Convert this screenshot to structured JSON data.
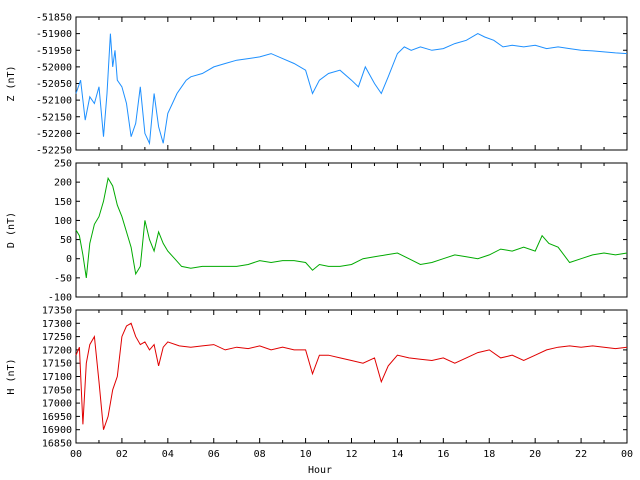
{
  "chart_data": [
    {
      "type": "line",
      "ylabel": "Z (nT)",
      "ylim": [
        -52250,
        -51850
      ],
      "yticks": [
        -51850,
        -51900,
        -51950,
        -52000,
        -52050,
        -52100,
        -52150,
        -52200,
        -52250
      ],
      "series": [
        {
          "color": "#1e90ff",
          "x": [
            0.0,
            0.2,
            0.4,
            0.6,
            0.8,
            1.0,
            1.2,
            1.35,
            1.5,
            1.6,
            1.7,
            1.8,
            2.0,
            2.2,
            2.4,
            2.6,
            2.8,
            3.0,
            3.2,
            3.4,
            3.6,
            3.8,
            4.0,
            4.2,
            4.4,
            4.6,
            4.8,
            5.0,
            5.5,
            6.0,
            6.5,
            7.0,
            7.5,
            8.0,
            8.5,
            9.0,
            9.5,
            10.0,
            10.3,
            10.6,
            11.0,
            11.5,
            12.0,
            12.3,
            12.6,
            13.0,
            13.3,
            13.6,
            14.0,
            14.3,
            14.6,
            15.0,
            15.5,
            16.0,
            16.5,
            17.0,
            17.5,
            17.8,
            18.2,
            18.6,
            19.0,
            19.5,
            20.0,
            20.5,
            21.0,
            21.5,
            22.0,
            22.5,
            23.0,
            23.5,
            24.0
          ],
          "y": [
            -52080,
            -52040,
            -52160,
            -52090,
            -52110,
            -52060,
            -52210,
            -52080,
            -51900,
            -52000,
            -51950,
            -52040,
            -52060,
            -52110,
            -52210,
            -52170,
            -52060,
            -52200,
            -52230,
            -52080,
            -52180,
            -52230,
            -52140,
            -52110,
            -52080,
            -52060,
            -52040,
            -52030,
            -52020,
            -52000,
            -51990,
            -51980,
            -51975,
            -51970,
            -51960,
            -51975,
            -51990,
            -52010,
            -52080,
            -52040,
            -52020,
            -52010,
            -52040,
            -52060,
            -52000,
            -52050,
            -52080,
            -52030,
            -51960,
            -51940,
            -51950,
            -51940,
            -51950,
            -51945,
            -51930,
            -51920,
            -51900,
            -51910,
            -51920,
            -51940,
            -51935,
            -51940,
            -51935,
            -51945,
            -51940,
            -51945,
            -51950,
            -51952,
            -51955,
            -51958,
            -51960
          ]
        }
      ]
    },
    {
      "type": "line",
      "ylabel": "D (nT)",
      "ylim": [
        -100,
        250
      ],
      "yticks": [
        250,
        200,
        150,
        100,
        50,
        0,
        -50,
        -100
      ],
      "series": [
        {
          "color": "#00aa00",
          "x": [
            0.0,
            0.15,
            0.3,
            0.45,
            0.6,
            0.8,
            1.0,
            1.2,
            1.4,
            1.6,
            1.8,
            2.0,
            2.2,
            2.4,
            2.6,
            2.8,
            3.0,
            3.2,
            3.4,
            3.6,
            3.8,
            4.0,
            4.3,
            4.6,
            5.0,
            5.5,
            6.0,
            6.5,
            7.0,
            7.5,
            8.0,
            8.5,
            9.0,
            9.5,
            10.0,
            10.3,
            10.6,
            11.0,
            11.5,
            12.0,
            12.5,
            13.0,
            13.5,
            14.0,
            14.5,
            15.0,
            15.5,
            16.0,
            16.5,
            17.0,
            17.5,
            18.0,
            18.5,
            19.0,
            19.5,
            20.0,
            20.3,
            20.6,
            21.0,
            21.5,
            22.0,
            22.5,
            23.0,
            23.5,
            24.0
          ],
          "y": [
            75,
            60,
            10,
            -50,
            40,
            90,
            110,
            150,
            210,
            190,
            140,
            110,
            70,
            30,
            -40,
            -20,
            100,
            50,
            20,
            70,
            40,
            20,
            0,
            -20,
            -25,
            -20,
            -20,
            -20,
            -20,
            -15,
            -5,
            -10,
            -5,
            -5,
            -10,
            -30,
            -15,
            -20,
            -20,
            -15,
            0,
            5,
            10,
            15,
            0,
            -15,
            -10,
            0,
            10,
            5,
            0,
            10,
            25,
            20,
            30,
            20,
            60,
            40,
            30,
            -10,
            0,
            10,
            15,
            10,
            15
          ]
        }
      ]
    },
    {
      "type": "line",
      "ylabel": "H (nT)",
      "ylim": [
        16850,
        17350
      ],
      "yticks": [
        17350,
        17300,
        17250,
        17200,
        17150,
        17100,
        17050,
        17000,
        16950,
        16900,
        16850
      ],
      "series": [
        {
          "color": "#e00000",
          "x": [
            0.0,
            0.15,
            0.3,
            0.45,
            0.6,
            0.8,
            1.0,
            1.2,
            1.4,
            1.6,
            1.8,
            2.0,
            2.2,
            2.4,
            2.6,
            2.8,
            3.0,
            3.2,
            3.4,
            3.6,
            3.8,
            4.0,
            4.5,
            5.0,
            5.5,
            6.0,
            6.5,
            7.0,
            7.5,
            8.0,
            8.5,
            9.0,
            9.5,
            10.0,
            10.3,
            10.6,
            11.0,
            11.5,
            12.0,
            12.5,
            13.0,
            13.3,
            13.6,
            14.0,
            14.5,
            15.0,
            15.5,
            16.0,
            16.5,
            17.0,
            17.5,
            18.0,
            18.5,
            19.0,
            19.5,
            20.0,
            20.5,
            21.0,
            21.5,
            22.0,
            22.5,
            23.0,
            23.5,
            24.0
          ],
          "y": [
            17180,
            17210,
            16920,
            17150,
            17220,
            17250,
            17080,
            16900,
            16950,
            17050,
            17100,
            17250,
            17290,
            17300,
            17250,
            17220,
            17230,
            17200,
            17220,
            17140,
            17210,
            17230,
            17215,
            17210,
            17215,
            17220,
            17200,
            17210,
            17205,
            17215,
            17200,
            17210,
            17200,
            17200,
            17110,
            17180,
            17180,
            17170,
            17160,
            17150,
            17170,
            17080,
            17140,
            17180,
            17170,
            17165,
            17160,
            17170,
            17150,
            17170,
            17190,
            17200,
            17170,
            17180,
            17160,
            17180,
            17200,
            17210,
            17215,
            17210,
            17215,
            17210,
            17205,
            17210
          ]
        }
      ]
    }
  ],
  "xaxis": {
    "label": "Hour",
    "xlim": [
      0,
      24
    ],
    "ticks": [
      "00",
      "02",
      "04",
      "06",
      "08",
      "10",
      "12",
      "14",
      "16",
      "18",
      "20",
      "22",
      "00"
    ]
  }
}
